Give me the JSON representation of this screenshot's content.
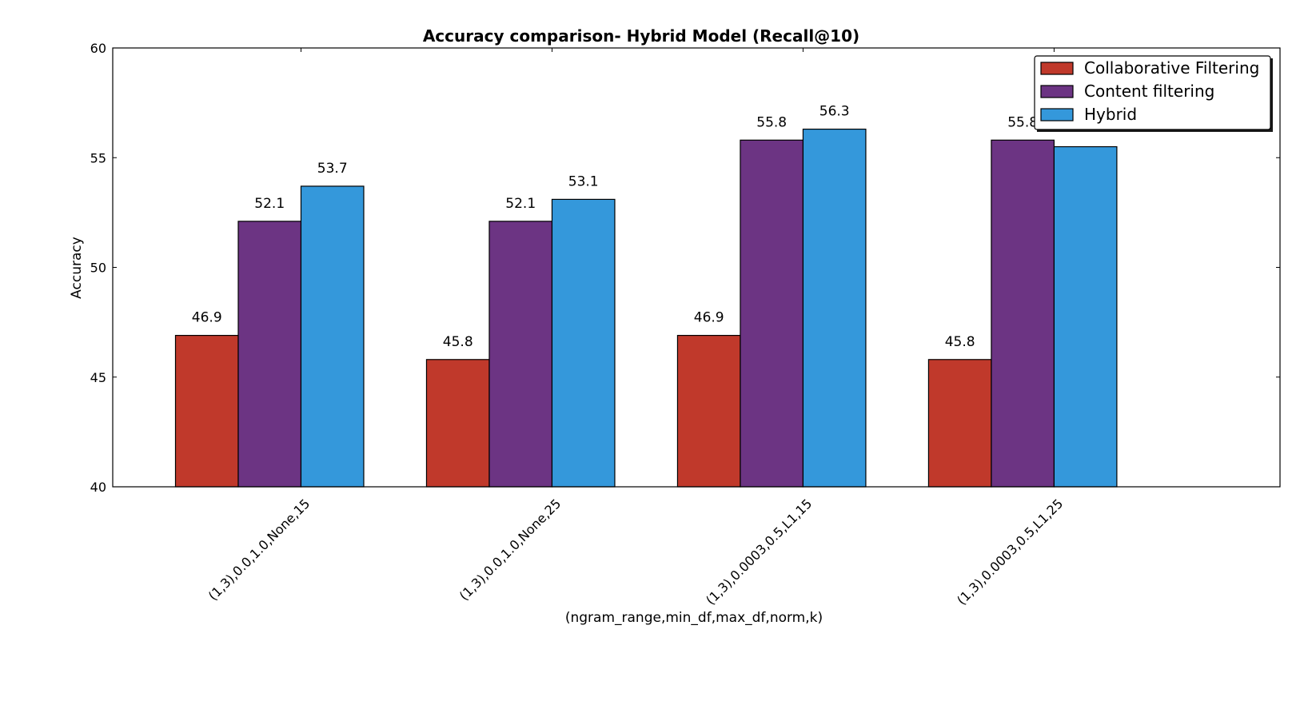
{
  "chart_data": {
    "type": "bar",
    "title": "Accuracy comparison- Hybrid Model (Recall@10)",
    "xlabel": "(ngram_range,min_df,max_df,norm,k)",
    "ylabel": "Accuracy",
    "ylim": [
      40,
      60
    ],
    "yticks": [
      40,
      45,
      50,
      55,
      60
    ],
    "grid": false,
    "legend_position": "top-right",
    "categories": [
      "(1,3),0.0,1.0,None,15",
      "(1,3),0.0,1.0,None,25",
      "(1,3),0.0003,0.5,L1,15",
      "(1,3),0.0003,0.5,L1,25"
    ],
    "series": [
      {
        "name": "Collaborative Filtering",
        "color": "#c0392b",
        "values": [
          46.9,
          45.8,
          46.9,
          45.8
        ],
        "labels": [
          "46.9",
          "45.8",
          "46.9",
          "45.8"
        ]
      },
      {
        "name": "Content filtering",
        "color": "#6c3483",
        "values": [
          52.1,
          52.1,
          55.8,
          55.8
        ],
        "labels": [
          "52.1",
          "52.1",
          "55.8",
          "55.8"
        ]
      },
      {
        "name": "Hybrid",
        "color": "#3498db",
        "values": [
          53.7,
          53.1,
          56.3,
          55.5
        ],
        "labels": [
          "53.7",
          "53.1",
          "56.3",
          ""
        ]
      }
    ]
  }
}
